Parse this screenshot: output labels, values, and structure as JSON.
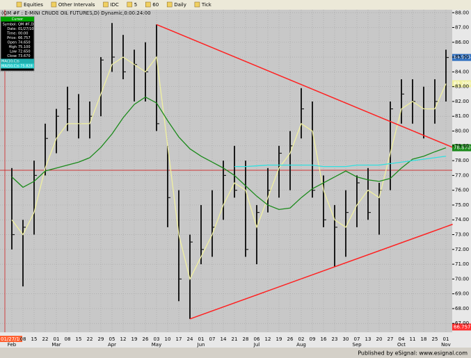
{
  "toolbar": {
    "items": [
      "Equities",
      "Other Intervals",
      "IDC",
      "5",
      "60",
      "Daily",
      "Tick"
    ]
  },
  "status_bar": "Published by eSignal: www.esignal.com",
  "info_panel": {
    "title": "Cursor",
    "rows": [
      [
        "Symbol:",
        "QM #F,D"
      ],
      [
        "Date:",
        "01/27/10"
      ],
      [
        "Time:",
        "00:00"
      ],
      [
        "Price:",
        "66.757"
      ],
      [
        "Open",
        "74.650"
      ],
      [
        "High",
        "75.100"
      ],
      [
        "Low",
        "72.650"
      ],
      [
        "Close",
        "73.670"
      ]
    ],
    "ma_rows": [
      "MA(10,C)s",
      "MA(50,C)s 75.828"
    ]
  },
  "chart_data": {
    "type": "ohlc",
    "title": "(QM #F : E-MINI CRUDE OIL FUTURES,D) Dynamic,0:00:24:00",
    "categories": [
      null,
      "08",
      "15",
      "22",
      "01",
      "08",
      "15",
      "22",
      "29",
      "05",
      "12",
      "19",
      "26",
      "03",
      "10",
      "17",
      "24",
      "01",
      "07",
      "14",
      "21",
      "28",
      "06",
      "12",
      "19",
      "26",
      "02",
      "09",
      "16",
      "23",
      "30",
      "07",
      "13",
      "20",
      "27",
      "04",
      "11",
      "18",
      "25",
      "01"
    ],
    "month_categories": [
      "Feb",
      null,
      null,
      null,
      "Mar",
      null,
      null,
      null,
      null,
      "Apr",
      null,
      null,
      null,
      "May",
      null,
      null,
      null,
      "Jun",
      null,
      null,
      null,
      null,
      "Jul",
      null,
      null,
      null,
      "Aug",
      null,
      null,
      null,
      null,
      "Sep",
      null,
      null,
      null,
      "Oct",
      null,
      null,
      null,
      "Nov"
    ],
    "high": [
      77.5,
      74,
      78,
      80.5,
      81.5,
      83,
      82.5,
      82,
      85,
      87.3,
      86.5,
      85.5,
      86,
      87.2,
      79,
      76,
      73,
      75,
      76,
      78,
      79,
      78,
      75,
      77.5,
      79,
      80,
      82.9,
      82,
      77,
      75,
      76,
      77,
      77.5,
      76.5,
      82,
      83.5,
      83.5,
      83,
      83.5,
      85.5
    ],
    "low": [
      72,
      69.5,
      73,
      77,
      78.5,
      80,
      79.5,
      79.5,
      81,
      84,
      83.5,
      82,
      82,
      80,
      73.5,
      68.5,
      67.3,
      71,
      71.5,
      74,
      75.5,
      71.5,
      71,
      74.5,
      75.5,
      76,
      79.5,
      75.5,
      73.5,
      70.8,
      71.5,
      73.5,
      74,
      73,
      76,
      80.5,
      80.5,
      79.5,
      80.5,
      82
    ],
    "close": [
      73,
      73.5,
      77,
      79.5,
      81,
      81.5,
      80.5,
      81,
      84.8,
      85,
      84,
      84.5,
      84,
      80.5,
      75.5,
      70,
      72.5,
      72,
      73.5,
      77,
      76,
      72,
      74.5,
      76,
      78.5,
      79,
      81.5,
      76,
      74,
      73.5,
      74.5,
      76.5,
      74.5,
      76,
      81.5,
      82.5,
      82,
      81.5,
      82,
      84.975
    ],
    "bar_color": "#1a1a1a",
    "series": [
      {
        "name": "MA(10,C)s",
        "color": "#f0f0a0",
        "values": [
          74,
          73,
          74.5,
          77.5,
          79.5,
          80.5,
          80.5,
          80.5,
          82.5,
          84.5,
          85,
          84.5,
          84,
          85,
          79,
          73,
          70,
          71.5,
          73,
          75,
          76.5,
          76,
          73.5,
          75.5,
          77.5,
          78.5,
          80.5,
          80,
          76,
          74,
          73.5,
          75,
          76,
          75.5,
          78.5,
          81.5,
          82,
          81.5,
          81.5,
          83.2
        ]
      },
      {
        "name": "MA(50,C)s",
        "color": "#1a8a1a",
        "values": [
          76.9,
          76.2,
          76.6,
          77.3,
          77.5,
          77.7,
          77.9,
          78.2,
          78.9,
          79.8,
          80.9,
          81.8,
          82.3,
          81.9,
          80.7,
          79.6,
          78.8,
          78.3,
          77.9,
          77.5,
          77.0,
          76.3,
          75.6,
          75.0,
          74.7,
          74.8,
          75.5,
          76.1,
          76.5,
          76.9,
          77.3,
          76.9,
          76.7,
          76.6,
          76.8,
          77.5,
          78.1,
          78.3,
          78.6,
          78.87
        ]
      },
      {
        "color": "#30e0e0",
        "values": [
          null,
          null,
          null,
          null,
          null,
          null,
          null,
          null,
          null,
          null,
          null,
          null,
          null,
          null,
          null,
          null,
          null,
          null,
          null,
          null,
          77.6,
          77.6,
          77.65,
          77.7,
          77.7,
          77.7,
          77.7,
          77.7,
          77.6,
          77.6,
          77.6,
          77.7,
          77.7,
          77.7,
          77.8,
          77.9,
          78.0,
          78.1,
          78.2,
          78.3
        ]
      }
    ],
    "trendlines": [
      {
        "color": "#ff2020",
        "x": [
          13,
          39.6
        ],
        "values": [
          87.2,
          78.9
        ]
      },
      {
        "color": "#ff2020",
        "x": [
          16,
          39.6
        ],
        "values": [
          67.3,
          73.7
        ]
      }
    ],
    "hline": 77.35,
    "price_labels": [
      {
        "value": 84.975,
        "label": "84.975",
        "color": "#3070c0"
      },
      {
        "value": 83.2,
        "label": "83.200",
        "color": "#f0f0a0"
      },
      {
        "value": 78.87,
        "label": "78.870",
        "color": "#1a8a1a"
      },
      {
        "value": 66.757,
        "label": "66.757",
        "color": "#ff3030"
      }
    ],
    "cursor_label": "01/27/10",
    "ylim": [
      66.4,
      88.2
    ],
    "yticks": [
      {
        "value": 67,
        "label": "67.00"
      },
      {
        "value": 68,
        "label": "68.00"
      },
      {
        "value": 69,
        "label": "69.00"
      },
      {
        "value": 70,
        "label": "70.00"
      },
      {
        "value": 71,
        "label": "71.00"
      },
      {
        "value": 72,
        "label": "72.00"
      },
      {
        "value": 73,
        "label": "73.00"
      },
      {
        "value": 74,
        "label": "74.00"
      },
      {
        "value": 75,
        "label": "75.00"
      },
      {
        "value": 76,
        "label": "76.00"
      },
      {
        "value": 77,
        "label": "77.00"
      },
      {
        "value": 78,
        "label": "78.00"
      },
      {
        "value": 79,
        "label": "79.00"
      },
      {
        "value": 80,
        "label": "80.00"
      },
      {
        "value": 81,
        "label": "81.00"
      },
      {
        "value": 82,
        "label": "82.00"
      },
      {
        "value": 83,
        "label": "83.00"
      },
      {
        "value": 84,
        "label": "84.00"
      },
      {
        "value": 85,
        "label": "85.00"
      },
      {
        "value": 86,
        "label": "86.00"
      },
      {
        "value": 87,
        "label": "87.00"
      },
      {
        "value": 88,
        "label": "88.00"
      }
    ],
    "grid": true
  }
}
